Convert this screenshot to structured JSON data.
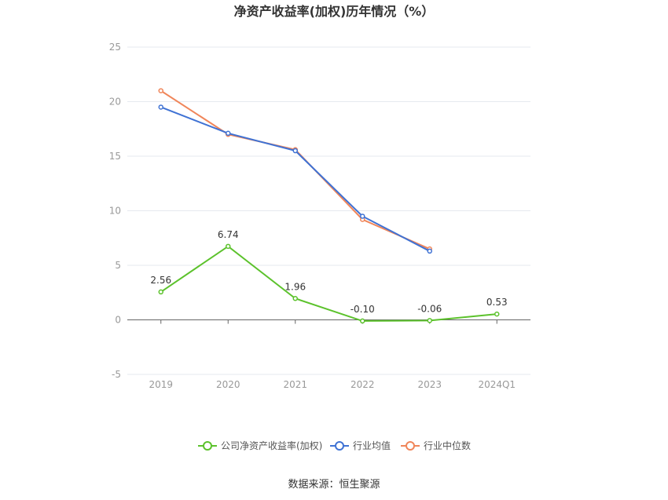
{
  "chart_data": {
    "type": "line",
    "title": "净资产收益率(加权)历年情况（%）",
    "categories": [
      "2019",
      "2020",
      "2021",
      "2022",
      "2023",
      "2024Q1"
    ],
    "ylim": [
      -5,
      25
    ],
    "yticks": [
      -5,
      0,
      5,
      10,
      15,
      20,
      25
    ],
    "grid": true,
    "legend_position": "bottom",
    "series": [
      {
        "name": "公司净资产收益率(加权)",
        "color": "#5cc22c",
        "values": [
          2.56,
          6.74,
          1.96,
          -0.1,
          -0.06,
          0.53
        ],
        "labels": [
          "2.56",
          "6.74",
          "1.96",
          "-0.10",
          "-0.06",
          "0.53"
        ]
      },
      {
        "name": "行业均值",
        "color": "#3f72d4",
        "values": [
          19.5,
          17.1,
          15.5,
          9.5,
          6.3,
          null
        ]
      },
      {
        "name": "行业中位数",
        "color": "#f0865a",
        "values": [
          21.0,
          17.0,
          15.6,
          9.2,
          6.5,
          null
        ]
      }
    ]
  },
  "source": "数据来源：恒生聚源"
}
